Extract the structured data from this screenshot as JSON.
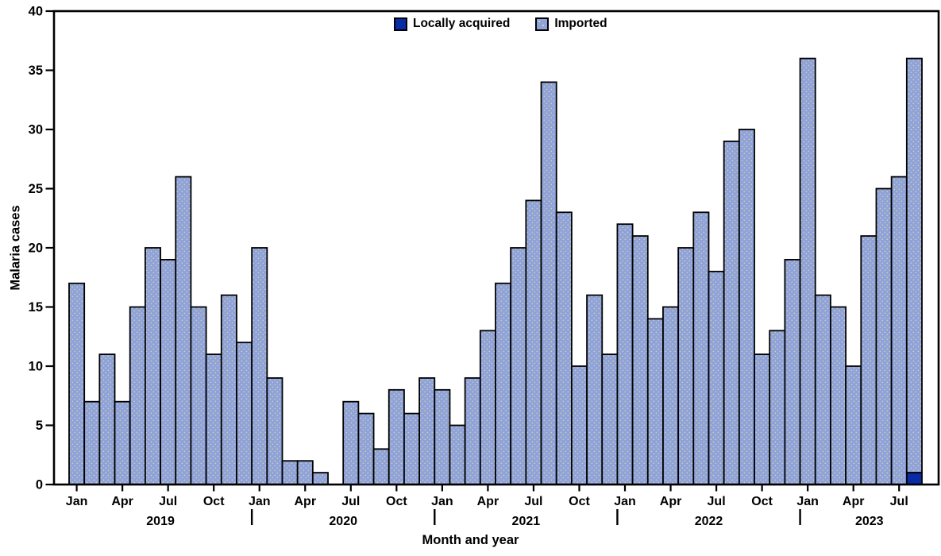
{
  "chart_data": {
    "type": "bar",
    "stacked": true,
    "title": "",
    "ylabel": "Malaria cases",
    "xlabel": "Month and year",
    "ylim": [
      0,
      40
    ],
    "yticks": [
      0,
      5,
      10,
      15,
      20,
      25,
      30,
      35,
      40
    ],
    "x_tick_months": [
      "Jan",
      "Apr",
      "Jul",
      "Oct"
    ],
    "years": [
      "2019",
      "2020",
      "2021",
      "2022",
      "2023"
    ],
    "grid": false,
    "legend_position": "top-center",
    "frame_color": "#000000",
    "categories": [
      "Jan 2019",
      "Feb 2019",
      "Mar 2019",
      "Apr 2019",
      "May 2019",
      "Jun 2019",
      "Jul 2019",
      "Aug 2019",
      "Sep 2019",
      "Oct 2019",
      "Nov 2019",
      "Dec 2019",
      "Jan 2020",
      "Feb 2020",
      "Mar 2020",
      "Apr 2020",
      "May 2020",
      "Jun 2020",
      "Jul 2020",
      "Aug 2020",
      "Sep 2020",
      "Oct 2020",
      "Nov 2020",
      "Dec 2020",
      "Jan 2021",
      "Feb 2021",
      "Mar 2021",
      "Apr 2021",
      "May 2021",
      "Jun 2021",
      "Jul 2021",
      "Aug 2021",
      "Sep 2021",
      "Oct 2021",
      "Nov 2021",
      "Dec 2021",
      "Jan 2022",
      "Feb 2022",
      "Mar 2022",
      "Apr 2022",
      "May 2022",
      "Jun 2022",
      "Jul 2022",
      "Aug 2022",
      "Sep 2022",
      "Oct 2022",
      "Nov 2022",
      "Dec 2022",
      "Jan 2023",
      "Feb 2023",
      "Mar 2023",
      "Apr 2023",
      "May 2023",
      "Jun 2023",
      "Jul 2023",
      "Aug 2023"
    ],
    "series": [
      {
        "name": "Locally acquired",
        "color": "#0a2ba6",
        "values": [
          0,
          0,
          0,
          0,
          0,
          0,
          0,
          0,
          0,
          0,
          0,
          0,
          0,
          0,
          0,
          0,
          0,
          0,
          0,
          0,
          0,
          0,
          0,
          0,
          0,
          0,
          0,
          0,
          0,
          0,
          0,
          0,
          0,
          0,
          0,
          0,
          0,
          0,
          0,
          0,
          0,
          0,
          0,
          0,
          0,
          0,
          0,
          0,
          0,
          0,
          0,
          0,
          0,
          0,
          0,
          1
        ]
      },
      {
        "name": "Imported",
        "color": "#8fa3da",
        "values": [
          17,
          7,
          11,
          7,
          15,
          20,
          19,
          26,
          15,
          11,
          16,
          12,
          20,
          9,
          2,
          2,
          1,
          0,
          7,
          6,
          3,
          8,
          6,
          9,
          8,
          5,
          9,
          13,
          17,
          20,
          24,
          34,
          23,
          10,
          16,
          11,
          22,
          21,
          14,
          15,
          20,
          23,
          18,
          29,
          30,
          11,
          13,
          19,
          36,
          16,
          15,
          10,
          21,
          25,
          26,
          35
        ]
      }
    ]
  }
}
